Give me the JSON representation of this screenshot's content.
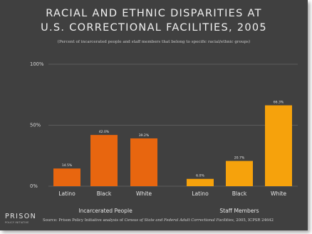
{
  "chart_data": {
    "type": "bar",
    "title_line1": "RACIAL AND ETHNIC DISPARITIES AT",
    "title_line2": "U.S. CORRECTIONAL FACILITIES, 2005",
    "subtitle": "(Percent of incarcerated people and staff members that belong to specific racial/ethnic groups)",
    "ylim": [
      0,
      100
    ],
    "y_ticks": [
      {
        "value": 0,
        "label": "0%"
      },
      {
        "value": 50,
        "label": "50%"
      },
      {
        "value": 100,
        "label": "100%"
      }
    ],
    "groups": [
      {
        "name": "Incarcerated People",
        "color": "#e8660f",
        "bars": [
          {
            "category": "Latino",
            "value": 14.5,
            "label": "14.5%"
          },
          {
            "category": "Black",
            "value": 42.0,
            "label": "42.0%"
          },
          {
            "category": "White",
            "value": 39.2,
            "label": "39.2%"
          }
        ]
      },
      {
        "name": "Staff Members",
        "color": "#f6a20c",
        "bars": [
          {
            "category": "Latino",
            "value": 6.0,
            "label": "6.0%"
          },
          {
            "category": "Black",
            "value": 20.7,
            "label": "20.7%"
          },
          {
            "category": "White",
            "value": 66.3,
            "label": "66.3%"
          }
        ]
      }
    ],
    "grid": true,
    "legend": "none"
  },
  "footer": {
    "logo": "PRISON",
    "logo_sub": "POLICY INITIATIVE",
    "source_prefix": "Source: Prison Policy Initiative analysis of ",
    "source_italic": "Census of State and Federal Adult Correctional Facilities",
    "source_suffix": ", 2005, ICPSR 24642"
  }
}
